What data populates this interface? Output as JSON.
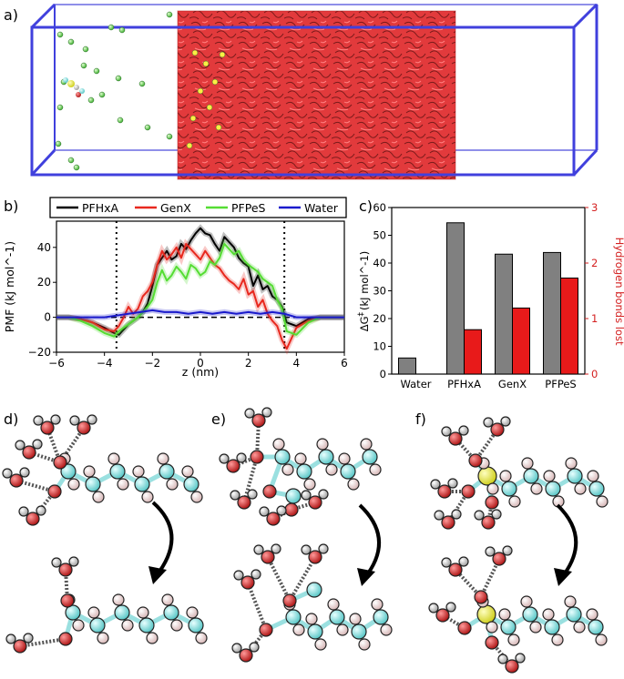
{
  "panels": {
    "a": "a)",
    "b": "b)",
    "c": "c)",
    "d": "d)",
    "e": "e)",
    "f": "f)"
  },
  "colors": {
    "box": "#3d3dd9",
    "membrane": "#e8383a",
    "pfhxa": "#000000",
    "genx": "#e8281e",
    "pfpes": "#55dd33",
    "water": "#1a1acc",
    "bar_gray": "#808080",
    "bar_red": "#e81a1a",
    "hbond_axis": "#d42020",
    "carbon": "#7fdede",
    "oxygen": "#d93030",
    "hydrogen": "#f2dede",
    "sulfur": "#eeee44",
    "white_atom": "#f0f0f0"
  },
  "icons": {
    "arrow_d": "curved-arrow-icon",
    "arrow_e": "curved-arrow-icon",
    "arrow_f": "curved-arrow-icon"
  },
  "chart_data": [
    {
      "type": "line",
      "xlabel": "z (nm)",
      "ylabel": "PMF (kJ mol^-1)",
      "xlim": [
        -6,
        6
      ],
      "ylim": [
        -20,
        55
      ],
      "xticks": [
        -6,
        -4,
        -2,
        0,
        2,
        4,
        6
      ],
      "xtick_labels": [
        "−6",
        "−4",
        "−2",
        "0",
        "2",
        "4",
        "6"
      ],
      "yticks": [
        -20,
        0,
        20,
        40
      ],
      "ytick_labels": [
        "−20",
        "0",
        "20",
        "40"
      ],
      "vlines": [
        -3.5,
        3.5
      ],
      "hline": 0,
      "legend_position": "top",
      "series": [
        {
          "name": "PFHxA",
          "color": "#000000",
          "x": [
            -6,
            -5.5,
            -5,
            -4.5,
            -4,
            -3.6,
            -3.4,
            -3.2,
            -3,
            -2.8,
            -2.6,
            -2.4,
            -2.2,
            -2,
            -1.8,
            -1.6,
            -1.4,
            -1.2,
            -1,
            -0.8,
            -0.6,
            -0.4,
            -0.2,
            0,
            0.2,
            0.4,
            0.6,
            0.8,
            1,
            1.2,
            1.4,
            1.6,
            1.8,
            2,
            2.2,
            2.4,
            2.6,
            2.8,
            3,
            3.2,
            3.4,
            3.6,
            4,
            4.5,
            5,
            5.5,
            6
          ],
          "y": [
            0,
            0,
            -1,
            -3,
            -6,
            -9,
            -10,
            -7,
            -4,
            -2,
            0,
            3,
            8,
            18,
            30,
            34,
            38,
            33,
            35,
            42,
            39,
            44,
            48,
            51,
            48,
            47,
            42,
            38,
            46,
            43,
            40,
            34,
            31,
            29,
            18,
            24,
            16,
            18,
            12,
            10,
            6,
            -3,
            -5,
            -1,
            0,
            0,
            0
          ]
        },
        {
          "name": "GenX",
          "color": "#e8281e",
          "x": [
            -6,
            -5.5,
            -5,
            -4.5,
            -4,
            -3.6,
            -3.4,
            -3.2,
            -3,
            -2.8,
            -2.6,
            -2.4,
            -2.2,
            -2,
            -1.8,
            -1.6,
            -1.4,
            -1.2,
            -1,
            -0.8,
            -0.6,
            -0.4,
            -0.2,
            0,
            0.2,
            0.4,
            0.6,
            0.8,
            1,
            1.2,
            1.4,
            1.6,
            1.8,
            2,
            2.2,
            2.4,
            2.6,
            2.8,
            3,
            3.2,
            3.4,
            3.6,
            4,
            4.5,
            5,
            5.5,
            6
          ],
          "y": [
            0,
            0,
            -1,
            -3,
            -7,
            -8,
            -5,
            0,
            6,
            2,
            5,
            12,
            15,
            20,
            30,
            38,
            33,
            36,
            40,
            34,
            42,
            39,
            36,
            33,
            38,
            34,
            30,
            28,
            24,
            21,
            19,
            16,
            22,
            13,
            15,
            6,
            10,
            2,
            -2,
            -5,
            -13,
            -18,
            -6,
            -2,
            0,
            0,
            0
          ]
        },
        {
          "name": "PFPeS",
          "color": "#55dd33",
          "x": [
            -6,
            -5.5,
            -5,
            -4.5,
            -4,
            -3.6,
            -3.4,
            -3.2,
            -3,
            -2.8,
            -2.6,
            -2.4,
            -2.2,
            -2,
            -1.8,
            -1.6,
            -1.4,
            -1.2,
            -1,
            -0.8,
            -0.6,
            -0.4,
            -0.2,
            0,
            0.2,
            0.4,
            0.6,
            0.8,
            1,
            1.2,
            1.4,
            1.6,
            1.8,
            2,
            2.2,
            2.4,
            2.6,
            2.8,
            3,
            3.2,
            3.4,
            3.6,
            4,
            4.5,
            5,
            5.5,
            6
          ],
          "y": [
            0,
            0,
            -2,
            -5,
            -9,
            -11,
            -8,
            -6,
            -4,
            -2,
            0,
            3,
            6,
            10,
            20,
            27,
            21,
            24,
            29,
            26,
            22,
            30,
            28,
            24,
            26,
            32,
            30,
            34,
            42,
            39,
            36,
            38,
            33,
            30,
            28,
            26,
            22,
            20,
            18,
            10,
            5,
            -8,
            -10,
            -3,
            0,
            0,
            0
          ]
        },
        {
          "name": "Water",
          "color": "#1a1acc",
          "x": [
            -6,
            -5,
            -4,
            -3.5,
            -3,
            -2.5,
            -2,
            -1.5,
            -1,
            -0.5,
            0,
            0.5,
            1,
            1.5,
            2,
            2.5,
            3,
            3.5,
            4,
            5,
            6
          ],
          "y": [
            0,
            0,
            0,
            1,
            2,
            3,
            4,
            3,
            3,
            2,
            3,
            2,
            3,
            2,
            3,
            2,
            3,
            2,
            0,
            0,
            0
          ]
        }
      ]
    },
    {
      "type": "bar",
      "categories": [
        "Water",
        "PFHxA",
        "GenX",
        "PFPeS"
      ],
      "ylabel": "ΔG‡ (kJ mol^-1)",
      "ylabel_prefix": "ΔG",
      "ylabel_mark": "‡",
      "ylabel_rest": "(kJ mol^-1)",
      "y2label": "Hydrogen bonds lost",
      "ylim": [
        0,
        60
      ],
      "y2lim": [
        0,
        3
      ],
      "yticks": [
        0,
        10,
        20,
        30,
        40,
        50,
        60
      ],
      "y2ticks": [
        0,
        1,
        2,
        3
      ],
      "series": [
        {
          "name": "ΔG‡",
          "axis": "left",
          "color": "#808080",
          "values": [
            5.8,
            54.5,
            43.2,
            43.8
          ]
        },
        {
          "name": "Hydrogen bonds lost",
          "axis": "right",
          "color": "#e81a1a",
          "values": [
            null,
            0.8,
            1.19,
            1.73
          ]
        }
      ]
    }
  ]
}
